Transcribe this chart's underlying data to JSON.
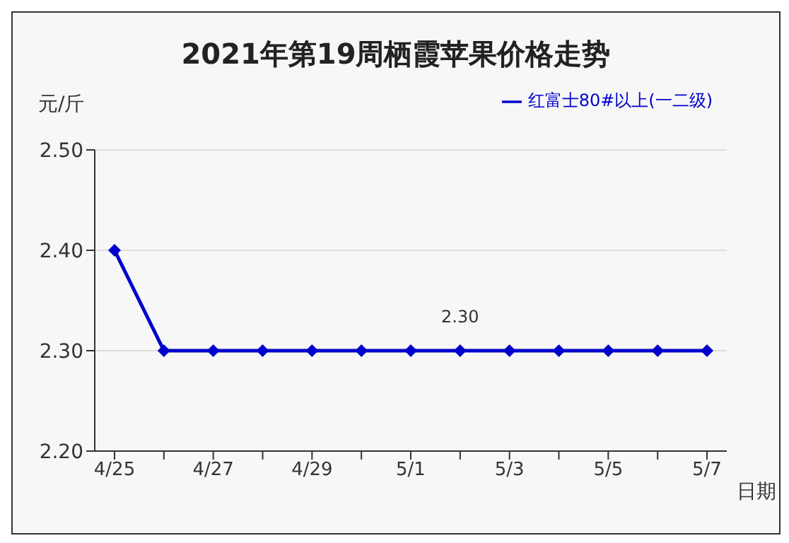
{
  "chart_data": {
    "type": "line",
    "title": "2021年第19周栖霞苹果价格走势",
    "xlabel": "日期",
    "ylabel": "元/斤",
    "categories": [
      "4/25",
      null,
      "4/27",
      null,
      "4/29",
      null,
      "5/1",
      null,
      "5/3",
      null,
      "5/5",
      null,
      "5/7"
    ],
    "series": [
      {
        "name": "红富士80#以上(一二级)",
        "color": "#0000cc",
        "values": [
          2.4,
          2.3,
          2.3,
          2.3,
          2.3,
          2.3,
          2.3,
          2.3,
          2.3,
          2.3,
          2.3,
          2.3,
          2.3
        ],
        "value_labels": [
          null,
          null,
          null,
          null,
          null,
          null,
          null,
          "2.30",
          null,
          null,
          null,
          null,
          null
        ]
      }
    ],
    "ylim": [
      2.2,
      2.5
    ],
    "yticks": [
      {
        "value": 2.2,
        "label": "2.20"
      },
      {
        "value": 2.3,
        "label": "2.30"
      },
      {
        "value": 2.4,
        "label": "2.40"
      },
      {
        "value": 2.5,
        "label": "2.50"
      }
    ],
    "grid": "y",
    "legend": "top right",
    "marker": "diamond",
    "line_style": "solid"
  }
}
